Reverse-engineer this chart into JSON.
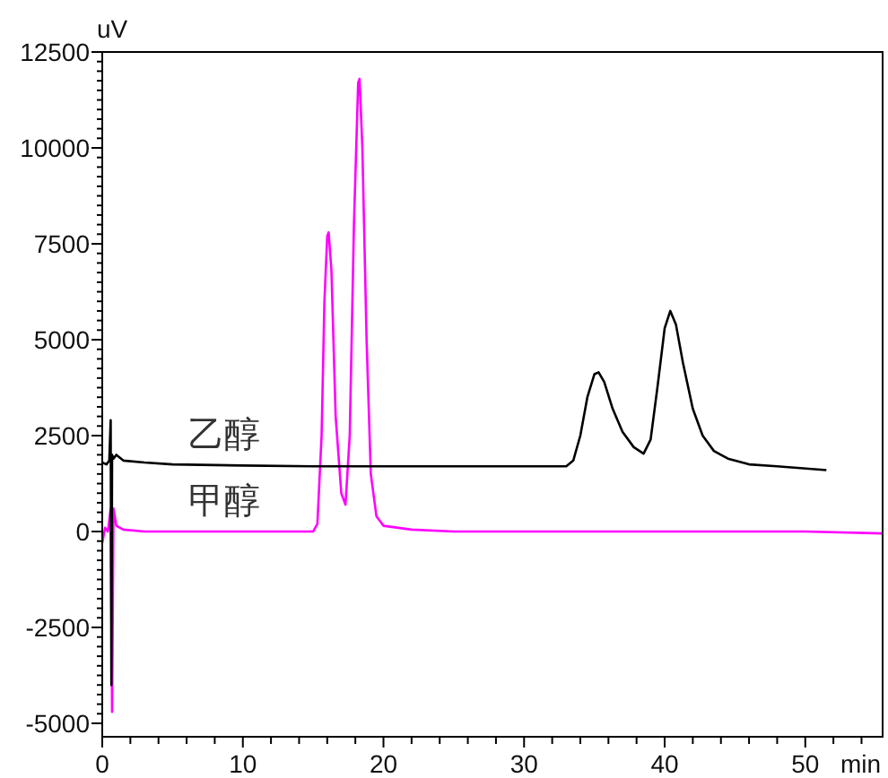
{
  "chart_data": {
    "type": "line",
    "xlabel": "min",
    "ylabel": "uV",
    "xlim": [
      0,
      55.5
    ],
    "ylim": [
      -5350,
      12500
    ],
    "xticks": [
      0,
      {
        "value": 2,
        "label": null
      },
      {
        "value": 4,
        "label": null
      },
      {
        "value": 6,
        "label": null
      },
      {
        "value": 8,
        "label": null
      },
      10,
      {
        "value": 12,
        "label": null
      },
      {
        "value": 14,
        "label": null
      },
      {
        "value": 16,
        "label": null
      },
      {
        "value": 18,
        "label": null
      },
      20,
      {
        "value": 22,
        "label": null
      },
      {
        "value": 24,
        "label": null
      },
      {
        "value": 26,
        "label": null
      },
      {
        "value": 28,
        "label": null
      },
      30,
      {
        "value": 32,
        "label": null
      },
      {
        "value": 34,
        "label": null
      },
      {
        "value": 36,
        "label": null
      },
      {
        "value": 38,
        "label": null
      },
      40,
      {
        "value": 42,
        "label": null
      },
      {
        "value": 44,
        "label": null
      },
      {
        "value": 46,
        "label": null
      },
      {
        "value": 48,
        "label": null
      },
      50,
      {
        "value": 52,
        "label": null
      },
      {
        "value": 54,
        "label": null
      }
    ],
    "yticks": [
      -5000,
      {
        "value": -4750,
        "label": null
      },
      {
        "value": -4500,
        "label": null
      },
      {
        "value": -4250,
        "label": null
      },
      {
        "value": -4000,
        "label": null
      },
      {
        "value": -3750,
        "label": null
      },
      {
        "value": -3500,
        "label": null
      },
      {
        "value": -3250,
        "label": null
      },
      {
        "value": -3000,
        "label": null
      },
      {
        "value": -2750,
        "label": null
      },
      -2500,
      {
        "value": -2250,
        "label": null
      },
      {
        "value": -2000,
        "label": null
      },
      {
        "value": -1750,
        "label": null
      },
      {
        "value": -1500,
        "label": null
      },
      {
        "value": -1250,
        "label": null
      },
      {
        "value": -1000,
        "label": null
      },
      {
        "value": -750,
        "label": null
      },
      {
        "value": -500,
        "label": null
      },
      {
        "value": -250,
        "label": null
      },
      0,
      {
        "value": 250,
        "label": null
      },
      {
        "value": 500,
        "label": null
      },
      {
        "value": 750,
        "label": null
      },
      {
        "value": 1000,
        "label": null
      },
      {
        "value": 1250,
        "label": null
      },
      {
        "value": 1500,
        "label": null
      },
      {
        "value": 1750,
        "label": null
      },
      {
        "value": 2000,
        "label": null
      },
      {
        "value": 2250,
        "label": null
      },
      2500,
      {
        "value": 2750,
        "label": null
      },
      {
        "value": 3000,
        "label": null
      },
      {
        "value": 3250,
        "label": null
      },
      {
        "value": 3500,
        "label": null
      },
      {
        "value": 3750,
        "label": null
      },
      {
        "value": 4000,
        "label": null
      },
      {
        "value": 4250,
        "label": null
      },
      {
        "value": 4500,
        "label": null
      },
      {
        "value": 4750,
        "label": null
      },
      5000,
      {
        "value": 5250,
        "label": null
      },
      {
        "value": 5500,
        "label": null
      },
      {
        "value": 5750,
        "label": null
      },
      {
        "value": 6000,
        "label": null
      },
      {
        "value": 6250,
        "label": null
      },
      {
        "value": 6500,
        "label": null
      },
      {
        "value": 6750,
        "label": null
      },
      {
        "value": 7000,
        "label": null
      },
      {
        "value": 7250,
        "label": null
      },
      7500,
      {
        "value": 7750,
        "label": null
      },
      {
        "value": 8000,
        "label": null
      },
      {
        "value": 8250,
        "label": null
      },
      {
        "value": 8500,
        "label": null
      },
      {
        "value": 8750,
        "label": null
      },
      {
        "value": 9000,
        "label": null
      },
      {
        "value": 9250,
        "label": null
      },
      {
        "value": 9500,
        "label": null
      },
      {
        "value": 9750,
        "label": null
      },
      10000,
      {
        "value": 10250,
        "label": null
      },
      {
        "value": 10500,
        "label": null
      },
      {
        "value": 10750,
        "label": null
      },
      {
        "value": 11000,
        "label": null
      },
      {
        "value": 11250,
        "label": null
      },
      {
        "value": 11500,
        "label": null
      },
      {
        "value": 11750,
        "label": null
      },
      {
        "value": 12000,
        "label": null
      },
      {
        "value": 12250,
        "label": null
      },
      12500
    ],
    "grid": false,
    "marker": "none",
    "line_style": "solid",
    "series": [
      {
        "name": "乙醇",
        "color": "#000000",
        "x": [
          0,
          0.3,
          0.5,
          0.6,
          0.65,
          0.7,
          0.8,
          1.0,
          1.5,
          3,
          5,
          10,
          15,
          20,
          25,
          30,
          33,
          33.5,
          34,
          34.5,
          35,
          35.3,
          35.7,
          36.3,
          37,
          37.8,
          38.5,
          39,
          39.5,
          40,
          40.4,
          40.8,
          41.3,
          42,
          42.7,
          43.5,
          44.5,
          46,
          48,
          51.5
        ],
        "values": [
          1800,
          1750,
          1850,
          2900,
          -4000,
          2000,
          1900,
          2000,
          1850,
          1800,
          1750,
          1720,
          1700,
          1700,
          1700,
          1700,
          1700,
          1850,
          2500,
          3500,
          4100,
          4150,
          3900,
          3200,
          2600,
          2200,
          2030,
          2400,
          3800,
          5300,
          5750,
          5400,
          4400,
          3200,
          2500,
          2100,
          1900,
          1750,
          1700,
          1600
        ]
      },
      {
        "name": "甲醇",
        "color": "#ff00ff",
        "x": [
          0,
          0.2,
          0.4,
          0.6,
          0.7,
          0.8,
          1.0,
          1.5,
          3,
          5,
          10,
          15,
          15.3,
          15.6,
          15.8,
          16.0,
          16.1,
          16.3,
          16.6,
          17.0,
          17.3,
          17.6,
          17.9,
          18.2,
          18.3,
          18.5,
          18.8,
          19.1,
          19.5,
          20,
          22,
          25,
          30,
          40,
          50,
          55.5
        ],
        "values": [
          -300,
          100,
          0,
          600,
          -4700,
          600,
          150,
          50,
          0,
          0,
          0,
          0,
          200,
          2500,
          6000,
          7700,
          7800,
          6800,
          3000,
          1000,
          700,
          2500,
          8000,
          11700,
          11800,
          10000,
          5000,
          1500,
          400,
          150,
          50,
          0,
          0,
          0,
          0,
          -50
        ]
      }
    ]
  }
}
